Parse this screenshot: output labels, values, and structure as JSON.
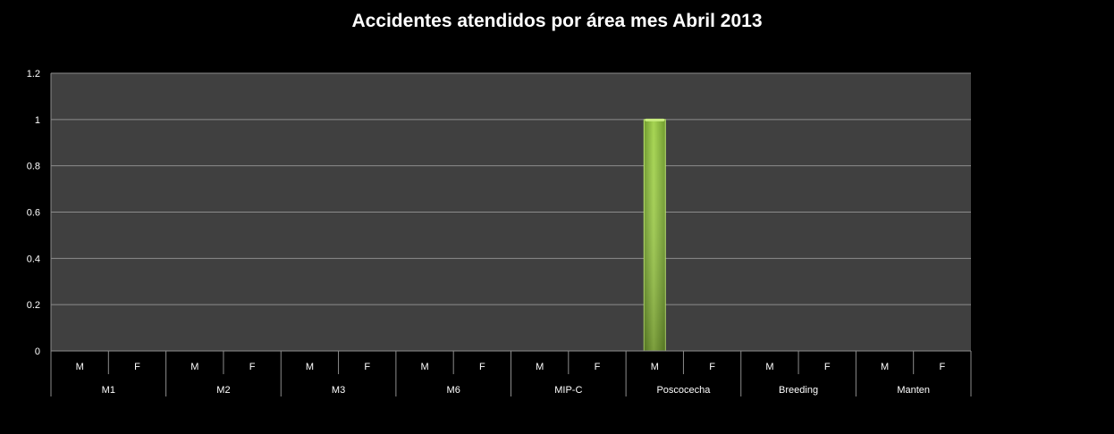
{
  "chart_data": {
    "type": "bar",
    "title": "Accidentes atendidos por área mes Abril 2013",
    "xlabel": "",
    "ylabel": "",
    "ylim": [
      0,
      1.2
    ],
    "yticks": [
      "0",
      "0.2",
      "0.4",
      "0.6",
      "0.8",
      "1",
      "1.2"
    ],
    "grid": true,
    "legend": "none",
    "groups": [
      {
        "name": "M1",
        "categories": [
          "M",
          "F"
        ],
        "values": [
          0,
          0
        ]
      },
      {
        "name": "M2",
        "categories": [
          "M",
          "F"
        ],
        "values": [
          0,
          0
        ]
      },
      {
        "name": "M3",
        "categories": [
          "M",
          "F"
        ],
        "values": [
          0,
          0
        ]
      },
      {
        "name": "M6",
        "categories": [
          "M",
          "F"
        ],
        "values": [
          0,
          0
        ]
      },
      {
        "name": "MIP-C",
        "categories": [
          "M",
          "F"
        ],
        "values": [
          0,
          0
        ]
      },
      {
        "name": "Poscocecha",
        "categories": [
          "M",
          "F"
        ],
        "values": [
          1,
          0
        ]
      },
      {
        "name": "Breeding",
        "categories": [
          "M",
          "F"
        ],
        "values": [
          0,
          0
        ]
      },
      {
        "name": "Manten",
        "categories": [
          "M",
          "F"
        ],
        "values": [
          0,
          0
        ]
      }
    ],
    "colors": {
      "background": "#000000",
      "plot_area": "#404040",
      "grid": "#8c8c8c",
      "bar": "#8cc63f",
      "bar_edge": "#b9e26b",
      "text": "#ffffff"
    }
  }
}
